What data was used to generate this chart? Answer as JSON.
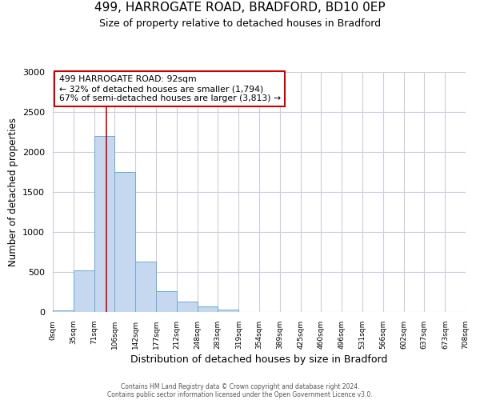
{
  "title": "499, HARROGATE ROAD, BRADFORD, BD10 0EP",
  "subtitle": "Size of property relative to detached houses in Bradford",
  "xlabel": "Distribution of detached houses by size in Bradford",
  "ylabel": "Number of detached properties",
  "bin_edges": [
    0,
    35,
    71,
    106,
    142,
    177,
    212,
    248,
    283,
    319,
    354,
    389,
    425,
    460,
    496,
    531,
    566,
    602,
    637,
    673,
    708
  ],
  "bar_heights": [
    20,
    520,
    2200,
    1750,
    635,
    260,
    130,
    70,
    30,
    5,
    0,
    0,
    0,
    0,
    0,
    0,
    0,
    0,
    0,
    0
  ],
  "bar_color": "#c5d8f0",
  "bar_edgecolor": "#6aaad4",
  "vline_x": 92,
  "vline_color": "#cc0000",
  "ylim": [
    0,
    3000
  ],
  "yticks": [
    0,
    500,
    1000,
    1500,
    2000,
    2500,
    3000
  ],
  "annotation_line1": "499 HARROGATE ROAD: 92sqm",
  "annotation_line2": "← 32% of detached houses are smaller (1,794)",
  "annotation_line3": "67% of semi-detached houses are larger (3,813) →",
  "annotation_box_edgecolor": "#cc0000",
  "footnote1": "Contains HM Land Registry data © Crown copyright and database right 2024.",
  "footnote2": "Contains public sector information licensed under the Open Government Licence v3.0.",
  "tick_labels": [
    "0sqm",
    "35sqm",
    "71sqm",
    "106sqm",
    "142sqm",
    "177sqm",
    "212sqm",
    "248sqm",
    "283sqm",
    "319sqm",
    "354sqm",
    "389sqm",
    "425sqm",
    "460sqm",
    "496sqm",
    "531sqm",
    "566sqm",
    "602sqm",
    "637sqm",
    "673sqm",
    "708sqm"
  ],
  "background_color": "#ffffff",
  "grid_color": "#ccccdd"
}
